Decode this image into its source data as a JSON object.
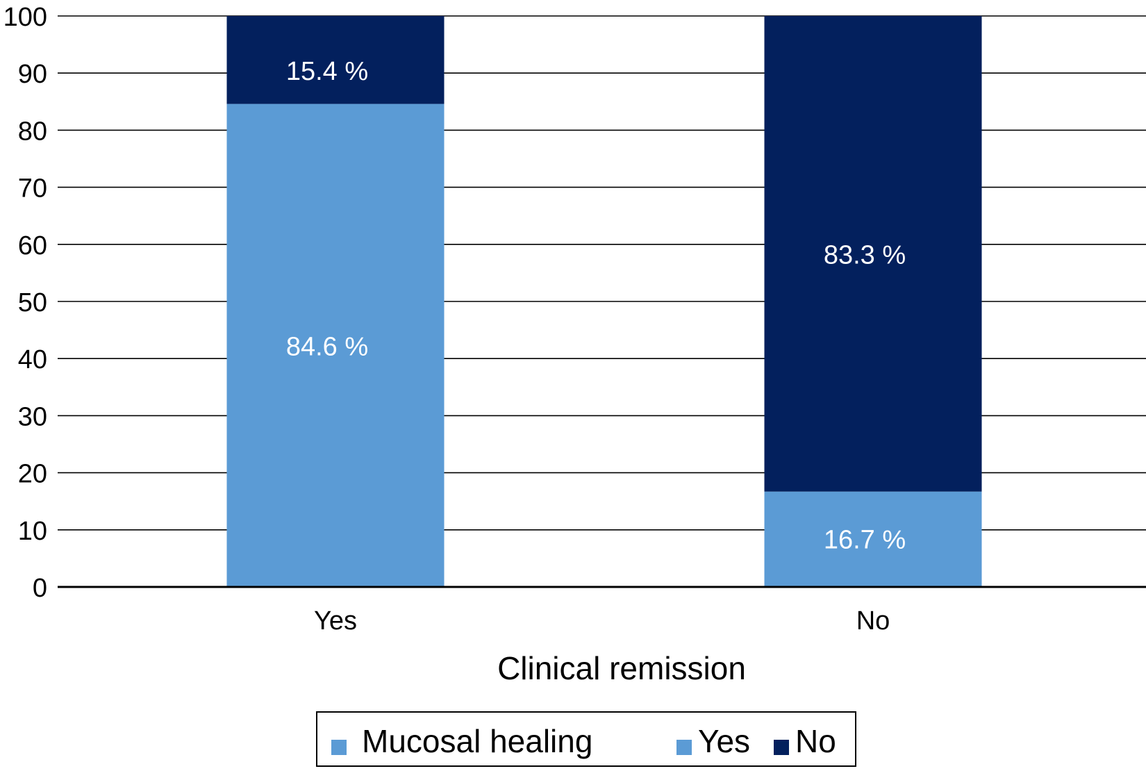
{
  "chart_data": {
    "type": "bar",
    "stacked": true,
    "categories": [
      "Yes",
      "No"
    ],
    "series": [
      {
        "name": "Yes",
        "values": [
          84.6,
          16.7
        ],
        "color": "#5b9bd5",
        "labels": [
          "84.6 %",
          "16.7 %"
        ]
      },
      {
        "name": "No",
        "values": [
          15.4,
          83.3
        ],
        "color": "#03205d",
        "labels": [
          "15.4 %",
          "83.3 %"
        ]
      }
    ],
    "xlabel": "Clinical remission",
    "ylabel": "",
    "ylim": [
      0,
      100
    ],
    "yticks": [
      0,
      10,
      20,
      30,
      40,
      50,
      60,
      70,
      80,
      90,
      100
    ],
    "grid": true,
    "legend": {
      "title": "Mucosal healing",
      "placement": "bottom-center",
      "title_color": "#5b9bd5"
    }
  }
}
